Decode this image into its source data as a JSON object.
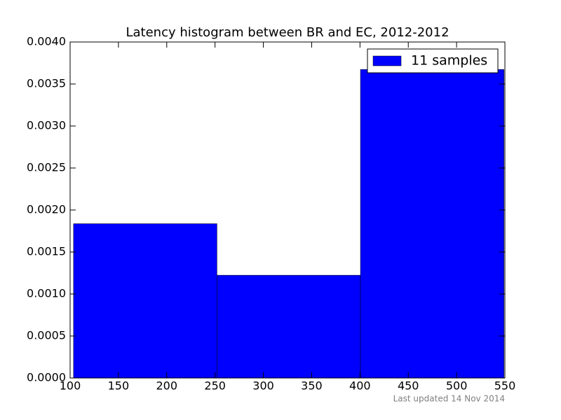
{
  "chart_data": {
    "type": "histogram",
    "title": "Latency histogram between BR and EC, 2012-2012",
    "bins": [
      103.5,
      252,
      400.5,
      549
    ],
    "series": [
      {
        "name": "11 samples",
        "color": "#0000ff",
        "values": [
          0.001837,
          0.001224,
          0.003673
        ]
      }
    ],
    "xlim": [
      100,
      550
    ],
    "xticks": [
      100,
      150,
      200,
      250,
      300,
      350,
      400,
      450,
      500,
      550
    ],
    "ylim": [
      0,
      0.004
    ],
    "yticks": [
      {
        "value": 0,
        "label": "0.0000"
      },
      {
        "value": 0.0005,
        "label": "0.0005"
      },
      {
        "value": 0.001,
        "label": "0.0010"
      },
      {
        "value": 0.0015,
        "label": "0.0015"
      },
      {
        "value": 0.002,
        "label": "0.0020"
      },
      {
        "value": 0.0025,
        "label": "0.0025"
      },
      {
        "value": 0.003,
        "label": "0.0030"
      },
      {
        "value": 0.0035,
        "label": "0.0035"
      },
      {
        "value": 0.004,
        "label": "0.0040"
      }
    ],
    "legend": "upper right",
    "footer": "Last updated 14 Nov 2014"
  }
}
